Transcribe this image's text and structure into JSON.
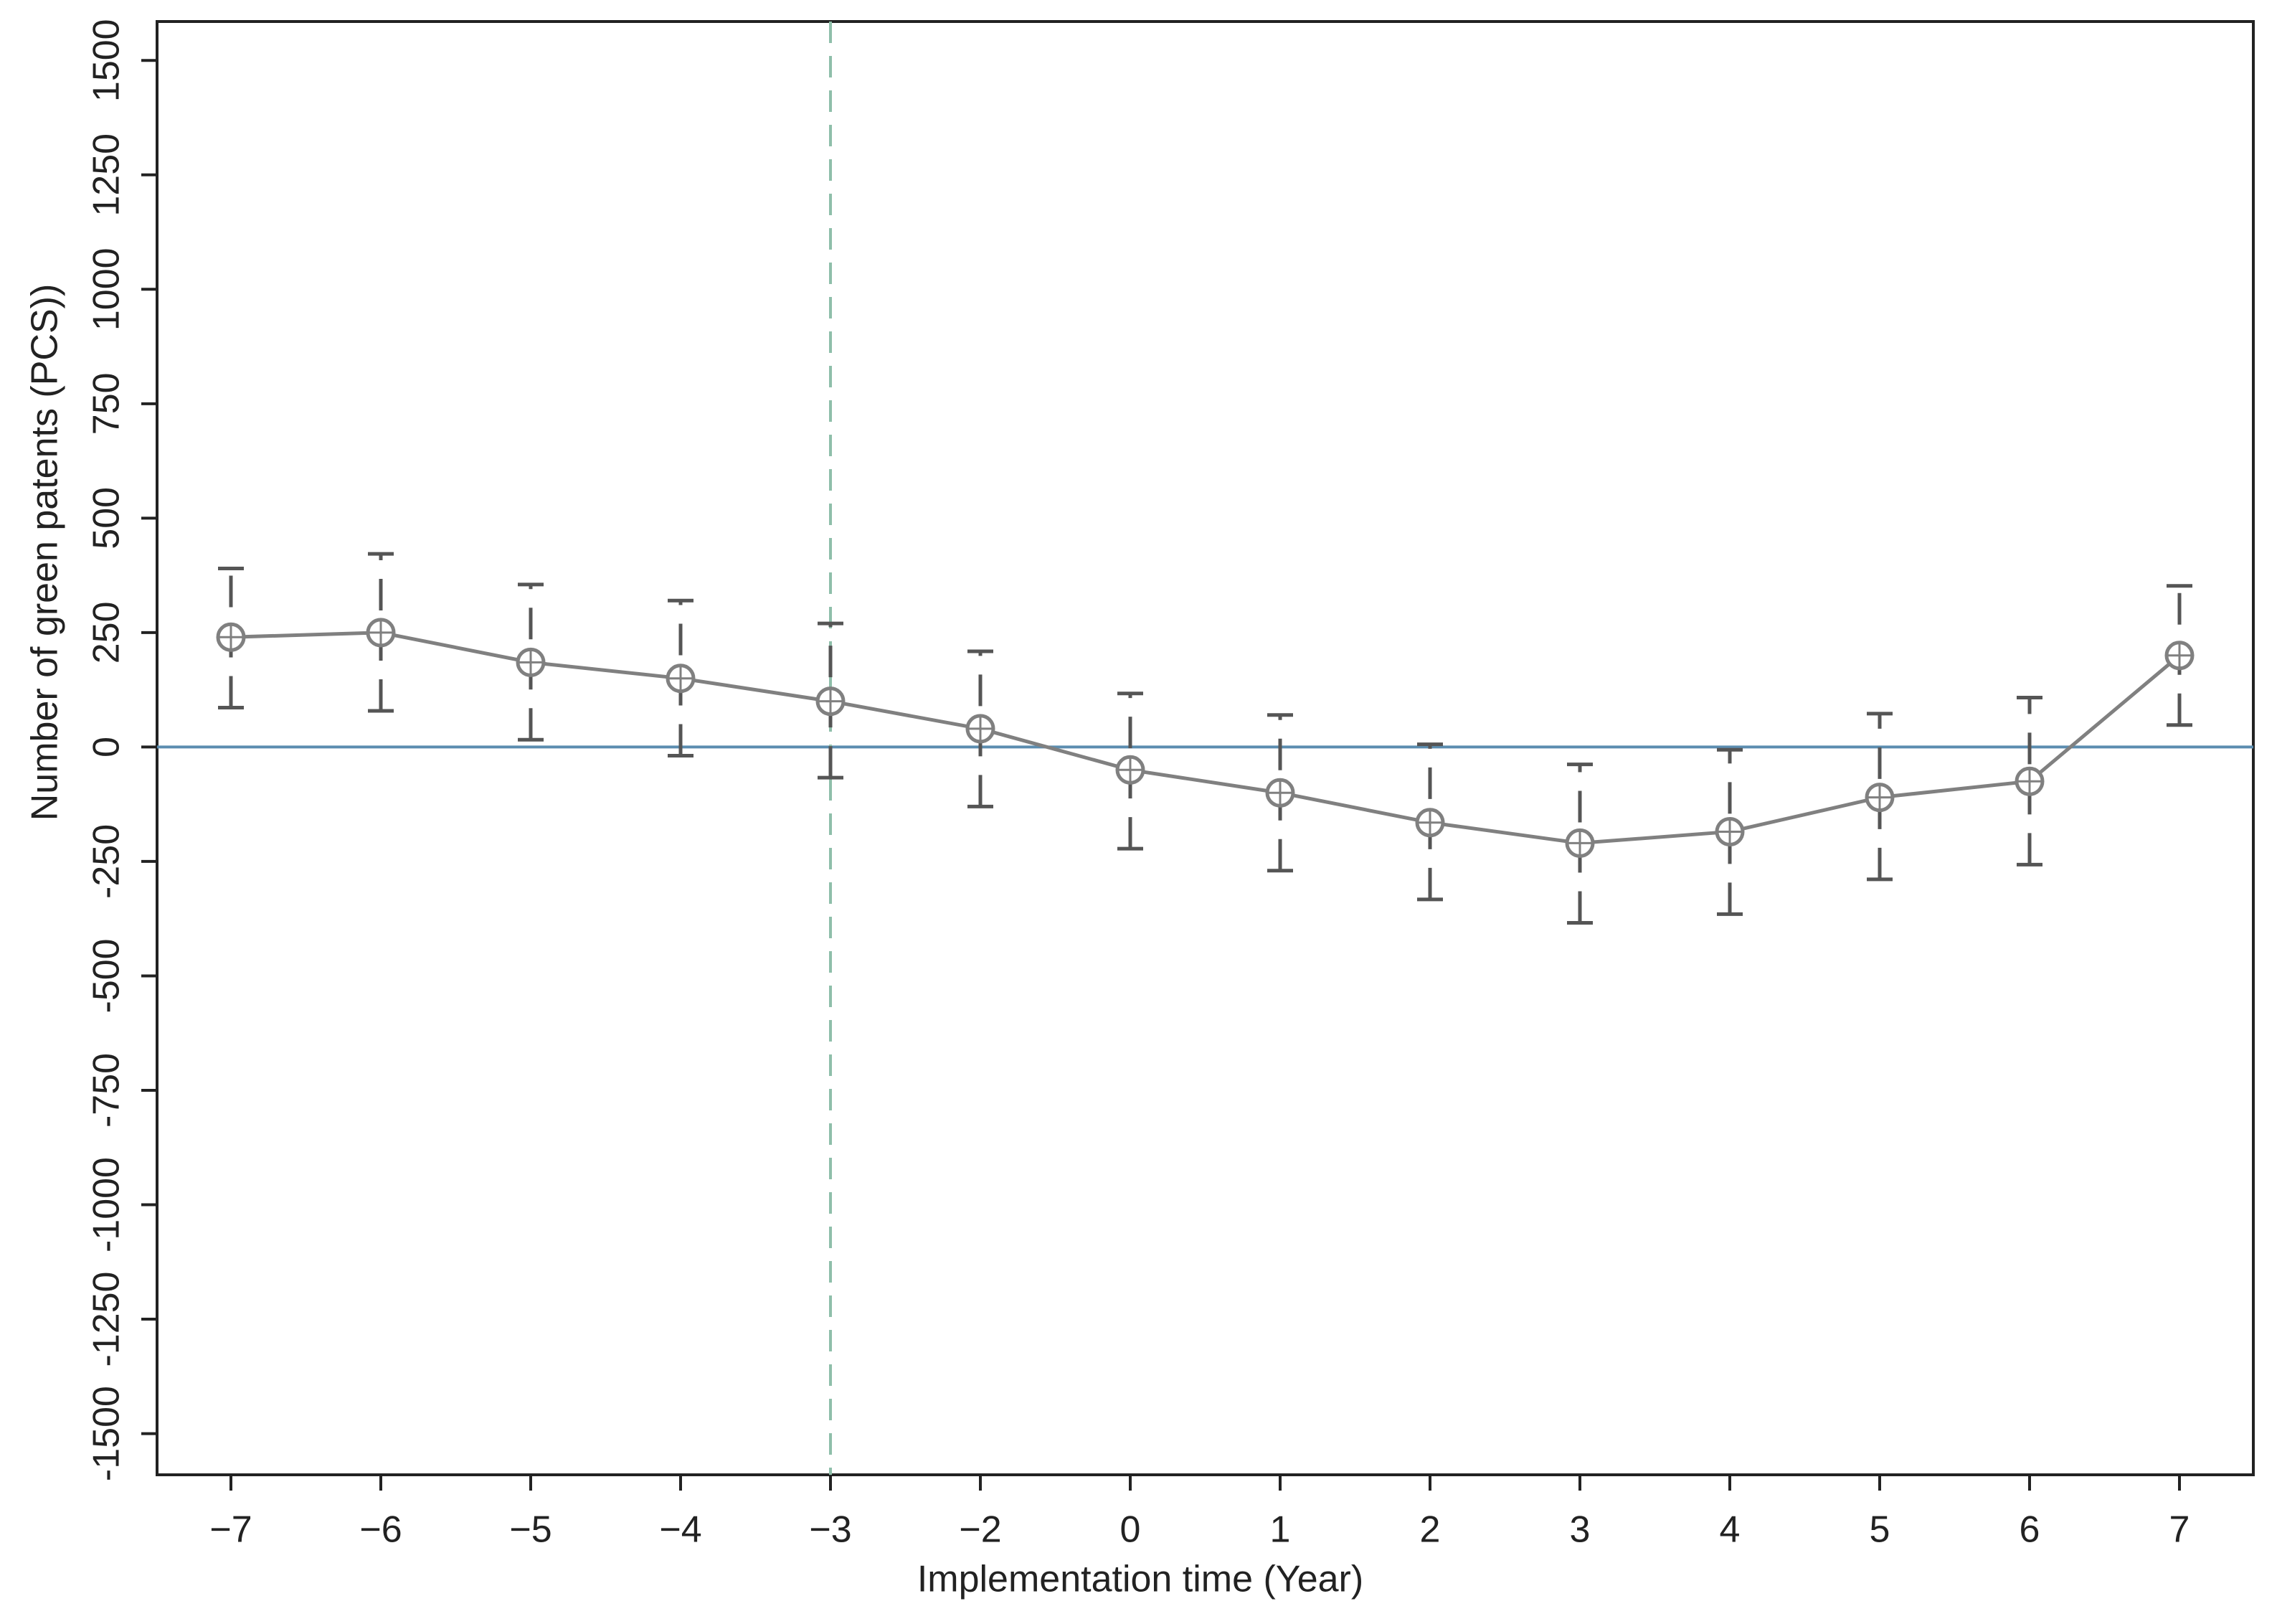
{
  "chart_data": {
    "type": "errorbar_line",
    "xlabel": "Implementation time (Year)",
    "ylabel": "Number of green patents (PCS))",
    "categories": [
      "−7",
      "−6",
      "−5",
      "−4",
      "−3",
      "−2",
      "0",
      "1",
      "2",
      "3",
      "4",
      "5",
      "6",
      "7"
    ],
    "series": [
      {
        "color": "#808080",
        "bar_color": "#555555",
        "values": [
          240,
          250,
          185,
          150,
          100,
          40,
          -50,
          -100,
          -165,
          -210,
          -185,
          -110,
          -75,
          200
        ],
        "ci_lower": [
          86,
          79,
          16,
          -19,
          -67,
          -130,
          -222,
          -270,
          -333,
          -384,
          -365,
          -289,
          -257,
          48
        ],
        "ci_upper": [
          390,
          422,
          355,
          320,
          270,
          209,
          117,
          70,
          6,
          -38,
          -6,
          73,
          108,
          352
        ]
      }
    ],
    "ylim": [
      -1590,
      1585
    ],
    "yticks": [
      -1500,
      -1250,
      -1000,
      -750,
      -500,
      -250,
      0,
      250,
      500,
      750,
      1000,
      1250,
      1500
    ],
    "hline": {
      "value": 0,
      "color": "#5b8db0"
    },
    "vline": {
      "category_index": 4,
      "color": "#8fbfaa"
    }
  }
}
